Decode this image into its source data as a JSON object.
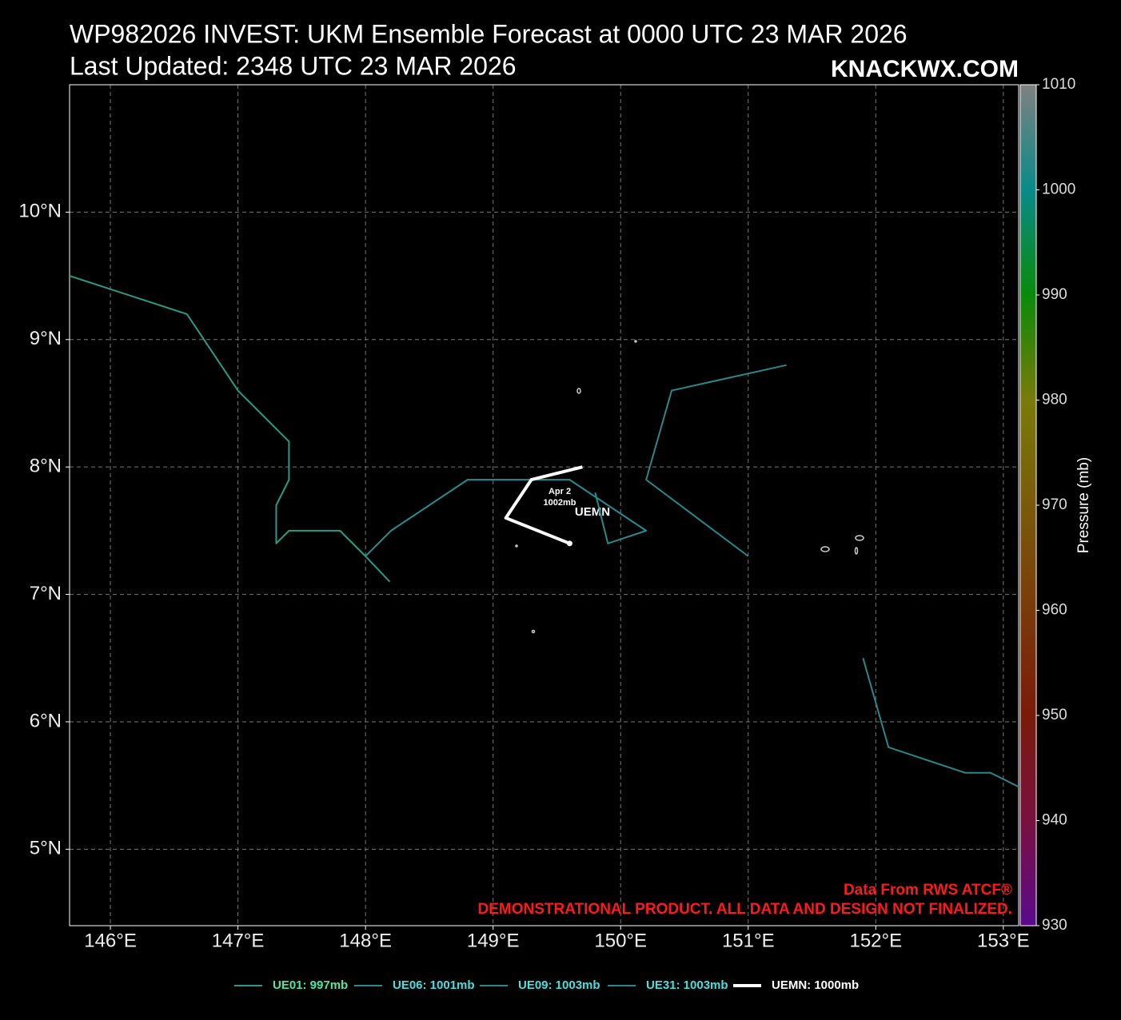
{
  "chart_data": {
    "type": "track-map",
    "title": "WP982026 INVEST: UKM Ensemble Forecast at 0000 UTC 23 MAR 2026",
    "subtitle": "Last Updated: 2348 UTC 23 MAR 2026",
    "watermark": "KNACKWX.COM",
    "credits": [
      "Data From RWS ATCF®",
      "DEMONSTRATIONAL PRODUCT. ALL DATA AND DESIGN NOT FINALIZED."
    ],
    "xlim": [
      145.68,
      153.12
    ],
    "ylim": [
      4.4,
      11.0
    ],
    "xticks": [
      {
        "value": 146,
        "label": "146°E"
      },
      {
        "value": 147,
        "label": "147°E"
      },
      {
        "value": 148,
        "label": "148°E"
      },
      {
        "value": 149,
        "label": "149°E"
      },
      {
        "value": 150,
        "label": "150°E"
      },
      {
        "value": 151,
        "label": "151°E"
      },
      {
        "value": 152,
        "label": "152°E"
      },
      {
        "value": 153,
        "label": "153°E"
      }
    ],
    "yticks": [
      {
        "value": 5,
        "label": "5°N"
      },
      {
        "value": 6,
        "label": "6°N"
      },
      {
        "value": 7,
        "label": "7°N"
      },
      {
        "value": 8,
        "label": "8°N"
      },
      {
        "value": 9,
        "label": "9°N"
      },
      {
        "value": 10,
        "label": "10°N"
      }
    ],
    "grid": true,
    "series": [
      {
        "name": "UE01: 997mb",
        "color": "#2a9a86",
        "width": 2,
        "x": [
          145.68,
          146.6,
          147.0,
          147.4,
          147.4,
          147.3,
          147.3,
          147.4,
          147.8,
          148.0,
          148.19
        ],
        "y": [
          9.5,
          9.2,
          8.6,
          8.2,
          7.9,
          7.7,
          7.4,
          7.5,
          7.5,
          7.3,
          7.1
        ]
      },
      {
        "name": "UE06: 1001mb",
        "color": "#268c90",
        "width": 2,
        "x": [
          148.0,
          148.2,
          148.8,
          149.6,
          150.2,
          149.9,
          149.8
        ],
        "y": [
          7.3,
          7.5,
          7.9,
          7.9,
          7.5,
          7.4,
          7.8
        ]
      },
      {
        "name": "UE09: 1003mb",
        "color": "#2b878c",
        "width": 2,
        "x": [
          151.0,
          150.2,
          150.4,
          151.3
        ],
        "y": [
          7.3,
          7.9,
          8.6,
          8.8
        ]
      },
      {
        "name": "UE31: 1003mb",
        "color": "#2b878c",
        "width": 2,
        "x": [
          151.9,
          152.1,
          152.7,
          152.9,
          153.12
        ],
        "y": [
          6.5,
          5.8,
          5.6,
          5.6,
          5.49
        ]
      },
      {
        "name": "UEMN: 1000mb",
        "color": "#ffffff",
        "width": 4,
        "x": [
          149.7,
          149.3,
          149.1,
          149.6
        ],
        "y": [
          8.0,
          7.9,
          7.6,
          7.4
        ]
      }
    ],
    "annotations": [
      "Apr  2",
      "1002mb",
      "UEMN"
    ],
    "colorbar": {
      "label": "Pressure (mb)",
      "lim": [
        930,
        1010
      ],
      "ticks": [
        930,
        940,
        950,
        960,
        970,
        980,
        990,
        1000,
        1010
      ],
      "colors": [
        "#5a0a8c",
        "#7a1040",
        "#7a1a0a",
        "#7a3a0a",
        "#7a5a0a",
        "#7a7a0a",
        "#0a8a0a",
        "#0a8a8a",
        "#808080"
      ]
    }
  }
}
